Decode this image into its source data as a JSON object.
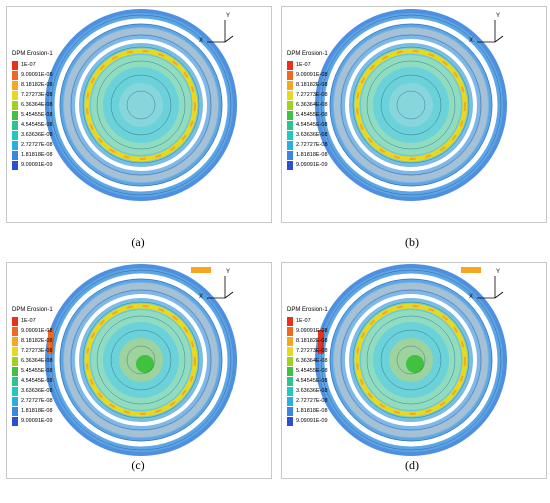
{
  "panels": [
    {
      "caption": "(a)"
    },
    {
      "caption": "(b)"
    },
    {
      "caption": "(c)"
    },
    {
      "caption": "(d)"
    }
  ],
  "legend": {
    "title": "DPM Erosion-1",
    "entries": [
      {
        "label": "1E-07",
        "color": "#e8301c"
      },
      {
        "label": "9.09091E-08",
        "color": "#ef6a20"
      },
      {
        "label": "8.18182E-08",
        "color": "#f5a623"
      },
      {
        "label": "7.27273E-08",
        "color": "#e8d81e"
      },
      {
        "label": "6.36364E-08",
        "color": "#9ed21e"
      },
      {
        "label": "5.45455E-08",
        "color": "#3fc23f"
      },
      {
        "label": "4.54545E-08",
        "color": "#2ec48f"
      },
      {
        "label": "3.63636E-08",
        "color": "#22c7c0"
      },
      {
        "label": "2.72727E-08",
        "color": "#2ab0e0"
      },
      {
        "label": "1.81818E-08",
        "color": "#3a86e0"
      },
      {
        "label": "9.09091E-09",
        "color": "#2a4fd0"
      }
    ]
  },
  "axis": {
    "x": "X",
    "y": "Y"
  }
}
